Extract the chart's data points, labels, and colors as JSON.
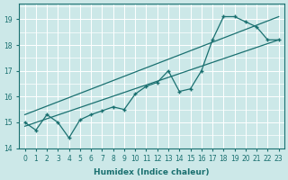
{
  "bg_color": "#cce8e8",
  "grid_color": "#ffffff",
  "line_color": "#1a7070",
  "xlabel": "Humidex (Indice chaleur)",
  "xlim": [
    -0.5,
    23.5
  ],
  "ylim": [
    14.0,
    19.6
  ],
  "xticks": [
    0,
    1,
    2,
    3,
    4,
    5,
    6,
    7,
    8,
    9,
    10,
    11,
    12,
    13,
    14,
    15,
    16,
    17,
    18,
    19,
    20,
    21,
    22,
    23
  ],
  "yticks": [
    14,
    15,
    16,
    17,
    18,
    19
  ],
  "series_x": [
    0,
    1,
    2,
    3,
    4,
    5,
    6,
    7,
    8,
    9,
    10,
    11,
    12,
    13,
    14,
    15,
    16,
    17,
    18,
    19,
    20,
    21,
    22,
    23
  ],
  "series_y": [
    15.0,
    14.7,
    15.3,
    15.0,
    14.4,
    15.1,
    15.3,
    15.45,
    15.6,
    15.5,
    16.1,
    16.4,
    16.55,
    17.0,
    16.2,
    16.3,
    17.0,
    18.2,
    19.1,
    19.1,
    18.9,
    18.7,
    18.2,
    18.2
  ],
  "trend1_x": [
    0,
    23
  ],
  "trend1_y": [
    14.85,
    18.2
  ],
  "trend2_x": [
    0,
    23
  ],
  "trend2_y": [
    15.3,
    19.1
  ]
}
